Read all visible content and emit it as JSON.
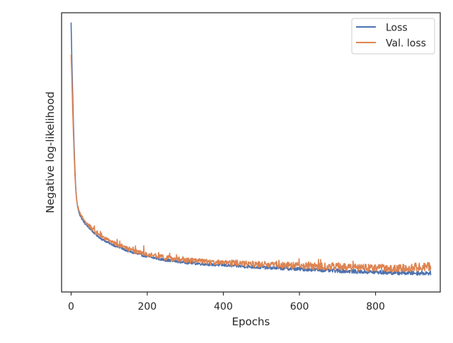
{
  "chart_data": {
    "type": "line",
    "title": "",
    "xlabel": "Epochs",
    "ylabel": "Negative log-likelihood",
    "xlim": [
      -25,
      970
    ],
    "ylim": [
      0.0,
      1.0
    ],
    "x_ticks": [
      0,
      200,
      400,
      600,
      800
    ],
    "x_tick_labels": [
      "0",
      "200",
      "400",
      "600",
      "800"
    ],
    "y_ticks_shown": false,
    "grid": false,
    "legend_position": "upper right",
    "series": [
      {
        "name": "Loss",
        "color": "#4c72b0",
        "x": [
          0,
          2,
          4,
          6,
          8,
          10,
          12,
          14,
          16,
          18,
          20,
          25,
          30,
          35,
          40,
          50,
          60,
          70,
          80,
          90,
          100,
          120,
          140,
          160,
          180,
          200,
          225,
          250,
          275,
          300,
          350,
          400,
          450,
          500,
          550,
          600,
          650,
          700,
          750,
          800,
          850,
          900,
          945
        ],
        "y": [
          0.965,
          0.83,
          0.72,
          0.61,
          0.52,
          0.44,
          0.38,
          0.34,
          0.315,
          0.3,
          0.288,
          0.27,
          0.258,
          0.248,
          0.24,
          0.226,
          0.212,
          0.2,
          0.19,
          0.182,
          0.175,
          0.163,
          0.152,
          0.142,
          0.134,
          0.127,
          0.12,
          0.114,
          0.11,
          0.106,
          0.1,
          0.096,
          0.092,
          0.088,
          0.085,
          0.082,
          0.079,
          0.076,
          0.073,
          0.071,
          0.069,
          0.068,
          0.068
        ]
      },
      {
        "name": "Val. loss",
        "color": "#dd8452",
        "x": [
          0,
          2,
          4,
          6,
          8,
          10,
          12,
          14,
          16,
          18,
          20,
          25,
          30,
          35,
          40,
          50,
          60,
          70,
          80,
          90,
          100,
          120,
          140,
          160,
          180,
          200,
          225,
          250,
          275,
          300,
          350,
          400,
          450,
          500,
          550,
          600,
          650,
          700,
          750,
          800,
          850,
          900,
          945
        ],
        "y": [
          0.85,
          0.76,
          0.66,
          0.57,
          0.49,
          0.42,
          0.37,
          0.335,
          0.315,
          0.302,
          0.292,
          0.276,
          0.264,
          0.255,
          0.248,
          0.234,
          0.22,
          0.208,
          0.198,
          0.19,
          0.183,
          0.171,
          0.16,
          0.15,
          0.142,
          0.135,
          0.128,
          0.122,
          0.118,
          0.114,
          0.109,
          0.105,
          0.102,
          0.099,
          0.096,
          0.094,
          0.092,
          0.09,
          0.088,
          0.086,
          0.085,
          0.088,
          0.092
        ]
      }
    ]
  }
}
